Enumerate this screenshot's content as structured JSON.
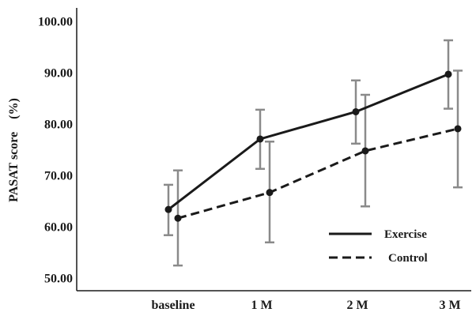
{
  "chart_data": {
    "type": "line",
    "categories": [
      "baseline",
      "1 M",
      "2 M",
      "3 M"
    ],
    "ylabel": "PASAT score    (%)",
    "ylim": [
      47.5,
      102.5
    ],
    "yticks": [
      "50.00",
      "60.00",
      "70.00",
      "80.00",
      "90.00",
      "100.00"
    ],
    "grid": false,
    "legend_position": "bottom-right",
    "series": [
      {
        "name": "Exercise",
        "line_style": "solid",
        "color": "#1a1a1a",
        "values": [
          63.3,
          77.0,
          82.3,
          89.6
        ],
        "error_low": [
          58.3,
          71.2,
          76.1,
          82.9
        ],
        "error_high": [
          68.1,
          82.7,
          88.4,
          96.2
        ]
      },
      {
        "name": "Control",
        "line_style": "dashed",
        "color": "#1a1a1a",
        "values": [
          61.6,
          66.6,
          74.7,
          79.0
        ],
        "error_low": [
          52.4,
          56.9,
          63.9,
          67.6
        ],
        "error_high": [
          70.9,
          76.5,
          85.6,
          90.3
        ]
      }
    ],
    "error_bar_color": "#8a8a8a"
  }
}
